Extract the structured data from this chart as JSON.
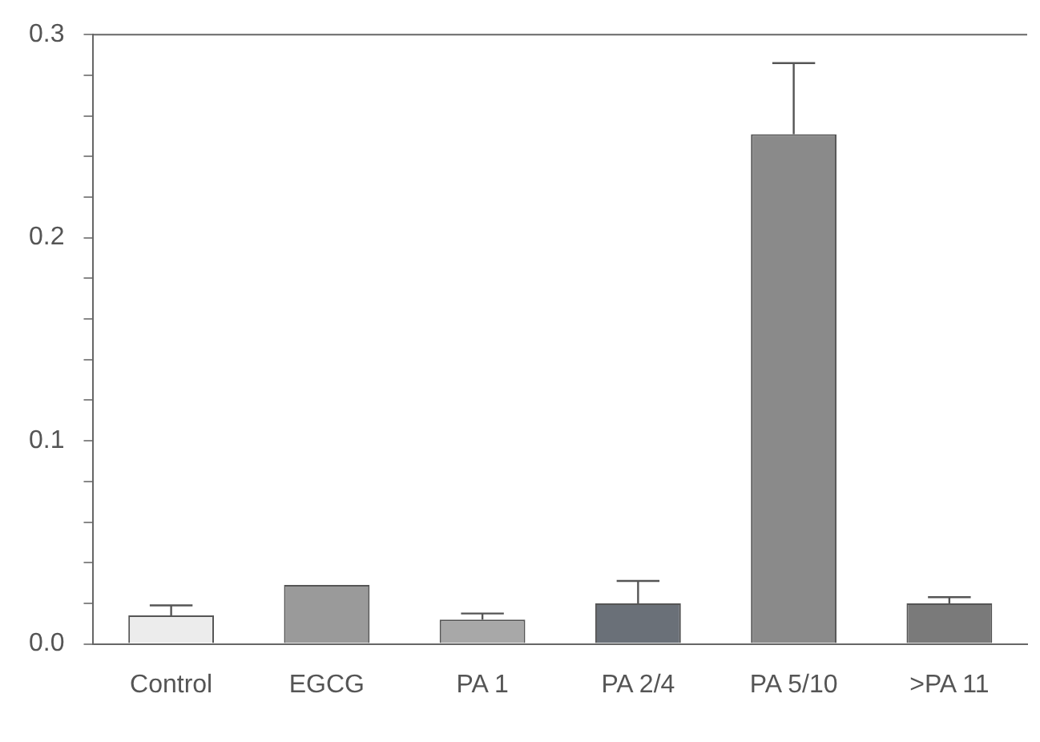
{
  "chart_data": {
    "type": "bar",
    "categories": [
      "Control",
      "EGCG",
      "PA 1",
      "PA 2/4",
      "PA 5/10",
      ">PA 11"
    ],
    "values": [
      0.014,
      0.029,
      0.012,
      0.02,
      0.251,
      0.02
    ],
    "errors": [
      [
        0.014,
        0.019
      ],
      null,
      [
        0.012,
        0.015
      ],
      [
        0.02,
        0.031
      ],
      [
        0.251,
        0.286
      ],
      [
        0.02,
        0.023
      ]
    ],
    "colors": [
      "#ececec",
      "#9a9a9a",
      "#a8a8a8",
      "#6a7078",
      "#8a8a8a",
      "#7a7a7a"
    ],
    "ylim": [
      0,
      0.3
    ],
    "yticks": [
      {
        "value": 0,
        "label": "0.0"
      },
      {
        "value": 0.02,
        "label": null
      },
      {
        "value": 0.04,
        "label": null
      },
      {
        "value": 0.06,
        "label": null
      },
      {
        "value": 0.08,
        "label": null
      },
      0.1,
      {
        "value": 0.12,
        "label": null
      },
      {
        "value": 0.14,
        "label": null
      },
      {
        "value": 0.16,
        "label": null
      },
      {
        "value": 0.18,
        "label": null
      },
      0.2,
      {
        "value": 0.22,
        "label": null
      },
      {
        "value": 0.24,
        "label": null
      },
      {
        "value": 0.26,
        "label": null
      },
      {
        "value": 0.28,
        "label": null
      },
      0.3
    ],
    "grid": false,
    "legend": false
  }
}
